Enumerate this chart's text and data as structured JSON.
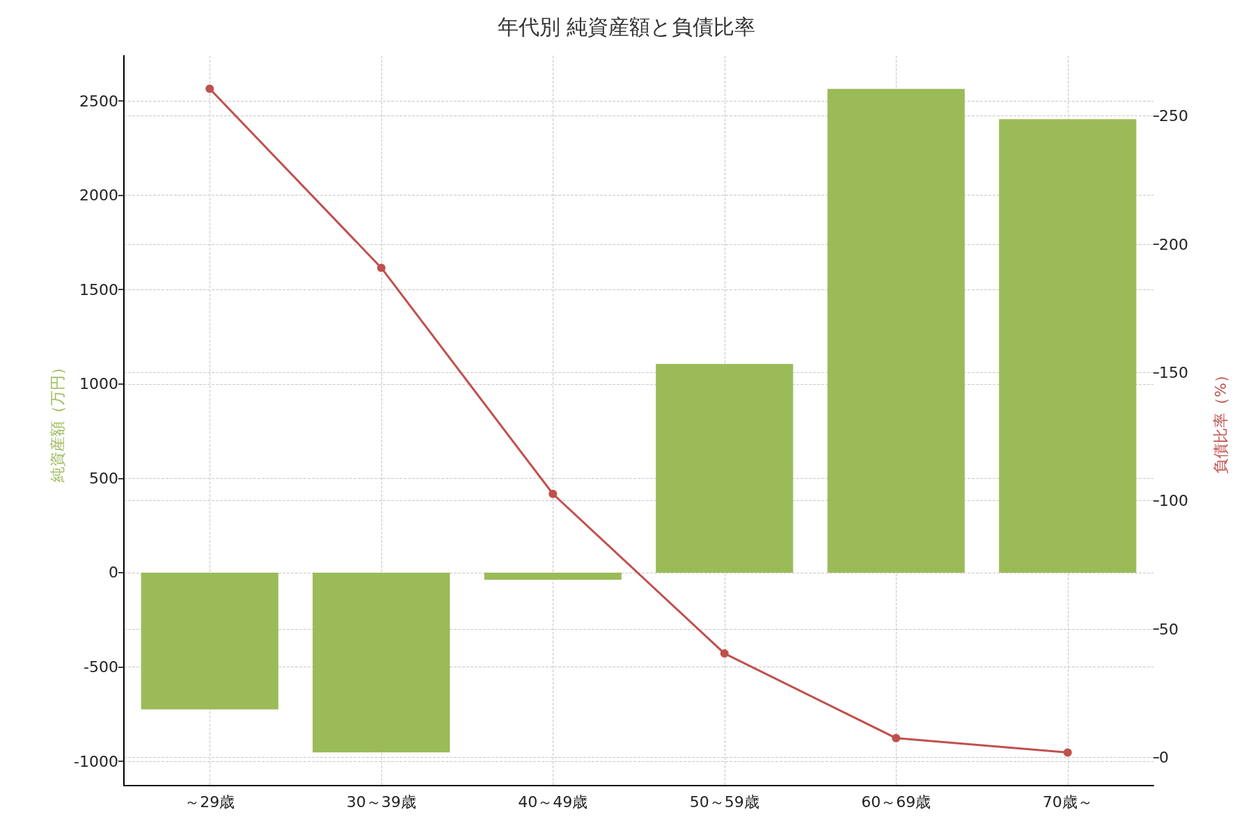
{
  "chart_data": {
    "type": "bar",
    "title": "年代別 純資産額と負債比率",
    "categories": [
      "～29歳",
      "30～39歳",
      "40～49歳",
      "50～59歳",
      "60～69歳",
      "70歳～"
    ],
    "series": [
      {
        "color": "#9bbb59",
        "values": [
          -725,
          -953,
          -38,
          1106,
          2564,
          2403
        ]
      },
      {
        "type": "line",
        "axis": "y2",
        "color": "#c0504d",
        "values": [
          260.6,
          190.8,
          102.7,
          40.5,
          7.5,
          1.9
        ]
      }
    ],
    "ylabel": "純資産額（万円）",
    "y2label": "負債比率（%）",
    "ylim": [
      -1129,
      2740
    ],
    "yticks": [
      -1000,
      -500,
      0,
      500,
      1000,
      1500,
      2000,
      2500
    ],
    "y2lim": [
      -11,
      273.5
    ],
    "y2ticks": [
      0,
      50,
      100,
      150,
      200,
      250
    ],
    "grid": true,
    "marker": "circle",
    "line_style": "solid"
  }
}
